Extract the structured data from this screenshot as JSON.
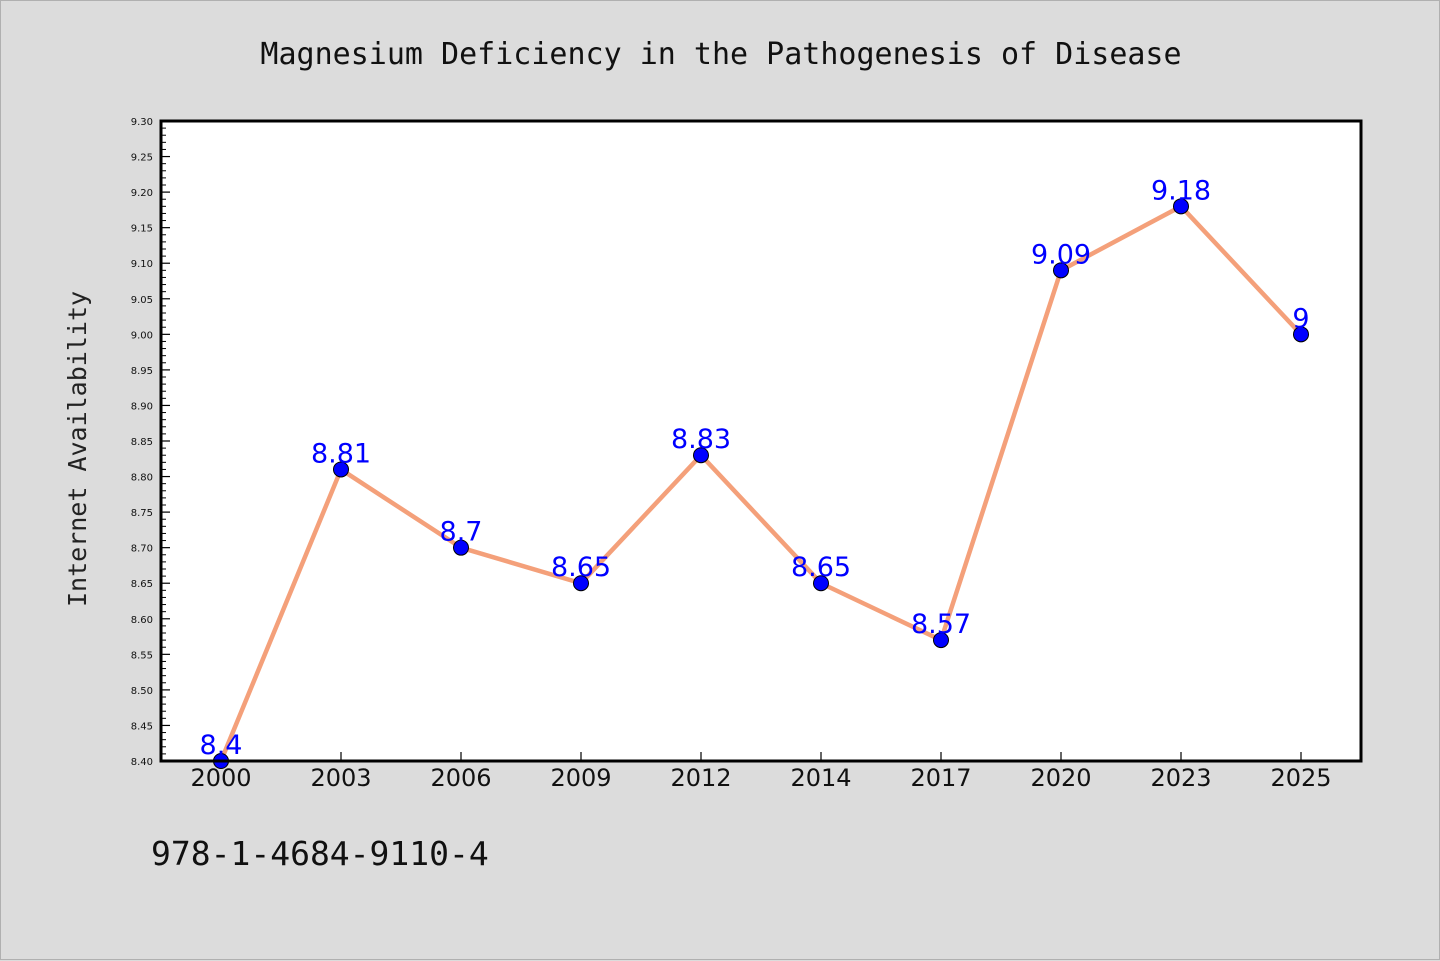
{
  "chart_data": {
    "type": "line",
    "title": "Magnesium Deficiency in the Pathogenesis of Disease",
    "xlabel": "",
    "ylabel": "Internet Availability",
    "categories": [
      "2000",
      "2003",
      "2006",
      "2009",
      "2012",
      "2014",
      "2017",
      "2020",
      "2023",
      "2025"
    ],
    "series": [
      {
        "values": [
          8.4,
          8.81,
          8.7,
          8.65,
          8.83,
          8.65,
          8.57,
          9.09,
          9.18,
          9.0
        ],
        "data_labels": [
          "8.4",
          "8.81",
          "8.7",
          "8.65",
          "8.83",
          "8.65",
          "8.57",
          "9.09",
          "9.18",
          "9"
        ],
        "line_color": "#f4a07a",
        "marker_color": "#0000ff"
      }
    ],
    "ylim": [
      8.4,
      9.3
    ],
    "y_ticks": [
      "8.40",
      "8.45",
      "8.50",
      "8.55",
      "8.60",
      "8.65",
      "8.70",
      "8.75",
      "8.80",
      "8.85",
      "8.90",
      "8.95",
      "9.00",
      "9.05",
      "9.10",
      "9.15",
      "9.20",
      "9.25",
      "9.30"
    ],
    "grid": false,
    "legend": "none"
  },
  "footnote": "978-1-4684-9110-4",
  "colors": {
    "background": "#dcdcdc",
    "plot_background": "#ffffff",
    "label_color": "#0000ff"
  }
}
